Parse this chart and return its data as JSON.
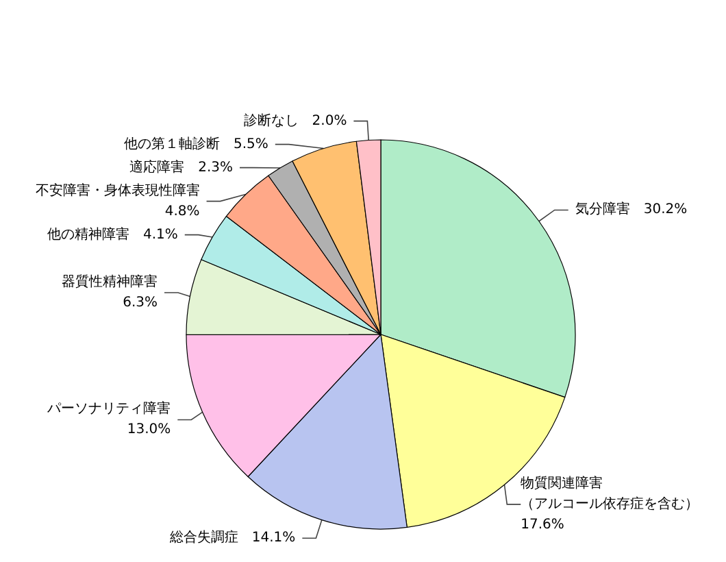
{
  "chart_data": {
    "type": "pie",
    "categories": [
      "気分障害",
      "物質関連障害（アルコール依存症を含む）",
      "総合失調症",
      "パーソナリティ障害",
      "器質性精神障害",
      "他の精神障害",
      "不安障害・身体表現性障害",
      "適応障害",
      "他の第１軸診断",
      "診断なし"
    ],
    "values": [
      30.2,
      17.6,
      14.1,
      13.0,
      6.3,
      4.1,
      4.8,
      2.3,
      5.5,
      2.0
    ],
    "value_labels": [
      "30.2%",
      "17.6%",
      "14.1%",
      "13.0%",
      "6.3%",
      "4.1%",
      "4.8%",
      "2.3%",
      "5.5%",
      "2.0%"
    ],
    "colors": [
      "#b0ecc8",
      "#ffff99",
      "#b8c4f0",
      "#ffc0e8",
      "#e4f4d4",
      "#b0ece8",
      "#ffa888",
      "#b0b0b0",
      "#ffc070",
      "#ffc0c8"
    ],
    "legend": false
  }
}
